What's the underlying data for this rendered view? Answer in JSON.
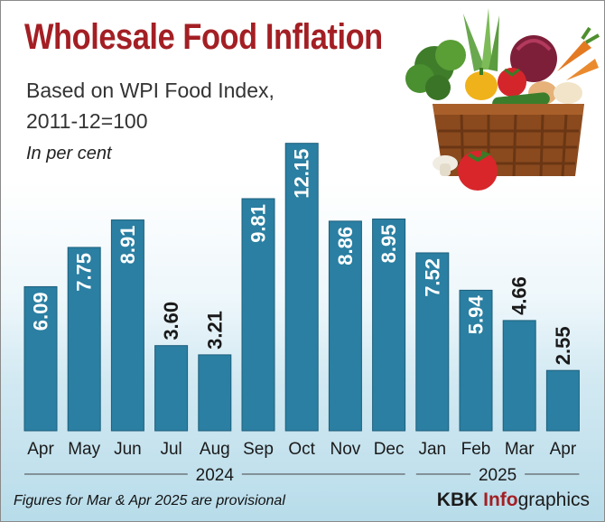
{
  "header": {
    "title": "Wholesale Food Inflation",
    "subtitle_line1": "Based on WPI Food Index,",
    "subtitle_line2": "2011-12=100",
    "unit": "In per cent"
  },
  "footer": {
    "note": "Figures for Mar & Apr 2025 are provisional",
    "credit_part1": "KBK ",
    "credit_part2": "Info",
    "credit_part3": "graphics"
  },
  "colors": {
    "title": "#a31f24",
    "bar": "#2a7fa2",
    "bar_dark": "#1d5f7c",
    "background_bottom": "#b8dcea"
  },
  "chart_data": {
    "type": "bar",
    "title": "Wholesale Food Inflation",
    "ylabel": "In per cent",
    "ylim": [
      0,
      13
    ],
    "grid": false,
    "categories": [
      "Apr",
      "May",
      "Jun",
      "Jul",
      "Aug",
      "Sep",
      "Oct",
      "Nov",
      "Dec",
      "Jan",
      "Feb",
      "Mar",
      "Apr"
    ],
    "values": [
      6.09,
      7.75,
      8.91,
      3.6,
      3.21,
      9.81,
      12.15,
      8.86,
      8.95,
      7.52,
      5.94,
      4.66,
      2.55
    ],
    "value_labels": [
      "6.09",
      "7.75",
      "8.91",
      "3.60",
      "3.21",
      "9.81",
      "12.15",
      "8.86",
      "8.95",
      "7.52",
      "5.94",
      "4.66",
      "2.55"
    ],
    "year_groups": [
      {
        "label": "2024",
        "start": 0,
        "end": 8
      },
      {
        "label": "2025",
        "start": 9,
        "end": 12
      }
    ]
  }
}
